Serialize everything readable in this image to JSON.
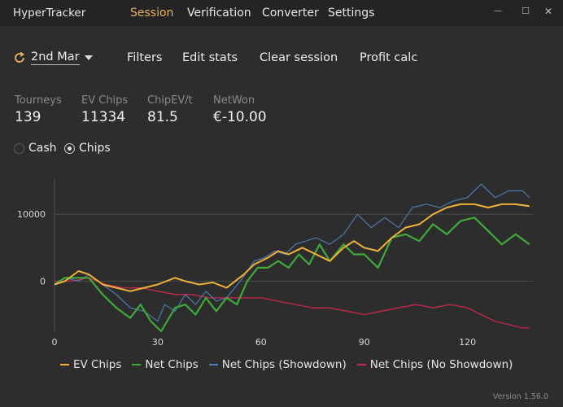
{
  "app": {
    "title": "HyperTracker",
    "version": "Version 1.56.0"
  },
  "menu": [
    {
      "label": "Session",
      "active": true
    },
    {
      "label": "Verification",
      "active": false
    },
    {
      "label": "Converter",
      "active": false
    },
    {
      "label": "Settings",
      "active": false
    }
  ],
  "window_controls": {
    "minimize": "—",
    "maximize": "☐",
    "close": "✕"
  },
  "toolbar": {
    "date": "2nd Mar",
    "filters": "Filters",
    "edit_stats": "Edit stats",
    "clear_session": "Clear session",
    "profit_calc": "Profit calc"
  },
  "stats": [
    {
      "label": "Tourneys",
      "value": "139"
    },
    {
      "label": "EV Chips",
      "value": "11334"
    },
    {
      "label": "ChipEV/t",
      "value": "81.5"
    },
    {
      "label": "NetWon",
      "value": "€-10.00"
    }
  ],
  "mode": {
    "cash_label": "Cash",
    "chips_label": "Chips",
    "selected": "Chips"
  },
  "chart_data": {
    "type": "line",
    "xlim": [
      0,
      139
    ],
    "ylim": [
      -7500,
      15500
    ],
    "x_ticks": [
      "0",
      "30",
      "60",
      "90",
      "120"
    ],
    "y_ticks": [
      "0",
      "10000"
    ],
    "grid": true,
    "legend": "bottom",
    "series": [
      {
        "name": "EV Chips",
        "color": "#f0b13b",
        "points": [
          [
            0,
            -500
          ],
          [
            3,
            0
          ],
          [
            7,
            1500
          ],
          [
            10,
            1000
          ],
          [
            14,
            -500
          ],
          [
            18,
            -1000
          ],
          [
            22,
            -1500
          ],
          [
            26,
            -1000
          ],
          [
            30,
            -500
          ],
          [
            35,
            500
          ],
          [
            38,
            0
          ],
          [
            42,
            -500
          ],
          [
            46,
            -200
          ],
          [
            50,
            -1000
          ],
          [
            55,
            1000
          ],
          [
            58,
            2500
          ],
          [
            62,
            3500
          ],
          [
            65,
            4500
          ],
          [
            68,
            4000
          ],
          [
            72,
            5000
          ],
          [
            76,
            4000
          ],
          [
            80,
            3000
          ],
          [
            84,
            5000
          ],
          [
            87,
            6000
          ],
          [
            90,
            5000
          ],
          [
            94,
            4500
          ],
          [
            98,
            6500
          ],
          [
            102,
            8000
          ],
          [
            106,
            8500
          ],
          [
            110,
            10000
          ],
          [
            114,
            11000
          ],
          [
            118,
            11500
          ],
          [
            122,
            11500
          ],
          [
            126,
            11000
          ],
          [
            130,
            11500
          ],
          [
            134,
            11500
          ],
          [
            138,
            11200
          ]
        ]
      },
      {
        "name": "Net Chips",
        "color": "#3faa3a",
        "points": [
          [
            0,
            -500
          ],
          [
            3,
            500
          ],
          [
            7,
            500
          ],
          [
            10,
            500
          ],
          [
            14,
            -2000
          ],
          [
            18,
            -4000
          ],
          [
            22,
            -5500
          ],
          [
            25,
            -3500
          ],
          [
            28,
            -6000
          ],
          [
            31,
            -7500
          ],
          [
            35,
            -4000
          ],
          [
            38,
            -3500
          ],
          [
            41,
            -5000
          ],
          [
            44,
            -2500
          ],
          [
            47,
            -4500
          ],
          [
            50,
            -2500
          ],
          [
            53,
            -3500
          ],
          [
            56,
            0
          ],
          [
            59,
            2000
          ],
          [
            62,
            2000
          ],
          [
            65,
            3000
          ],
          [
            68,
            2000
          ],
          [
            71,
            4000
          ],
          [
            74,
            2500
          ],
          [
            77,
            5500
          ],
          [
            80,
            3000
          ],
          [
            84,
            5500
          ],
          [
            87,
            4000
          ],
          [
            90,
            4000
          ],
          [
            94,
            2000
          ],
          [
            98,
            6500
          ],
          [
            102,
            7000
          ],
          [
            106,
            6000
          ],
          [
            110,
            8500
          ],
          [
            114,
            7000
          ],
          [
            118,
            9000
          ],
          [
            122,
            9500
          ],
          [
            126,
            7500
          ],
          [
            130,
            5500
          ],
          [
            134,
            7000
          ],
          [
            138,
            5500
          ]
        ]
      },
      {
        "name": "Net Chips (Showdown)",
        "color": "#4f7fb6",
        "points": [
          [
            0,
            -500
          ],
          [
            3,
            500
          ],
          [
            7,
            0
          ],
          [
            10,
            1000
          ],
          [
            14,
            -500
          ],
          [
            18,
            -2000
          ],
          [
            22,
            -4000
          ],
          [
            26,
            -4500
          ],
          [
            30,
            -6000
          ],
          [
            32,
            -3500
          ],
          [
            35,
            -4500
          ],
          [
            38,
            -2000
          ],
          [
            41,
            -3500
          ],
          [
            44,
            -1500
          ],
          [
            47,
            -3000
          ],
          [
            50,
            -2500
          ],
          [
            54,
            0
          ],
          [
            58,
            3000
          ],
          [
            61,
            3500
          ],
          [
            64,
            4500
          ],
          [
            67,
            4000
          ],
          [
            70,
            5500
          ],
          [
            73,
            6000
          ],
          [
            76,
            6500
          ],
          [
            80,
            5500
          ],
          [
            84,
            7000
          ],
          [
            88,
            10000
          ],
          [
            92,
            8000
          ],
          [
            96,
            9500
          ],
          [
            100,
            8000
          ],
          [
            104,
            11000
          ],
          [
            108,
            11500
          ],
          [
            112,
            11000
          ],
          [
            116,
            12000
          ],
          [
            120,
            12500
          ],
          [
            124,
            14500
          ],
          [
            128,
            12500
          ],
          [
            132,
            13500
          ],
          [
            136,
            13500
          ],
          [
            138,
            12500
          ]
        ]
      },
      {
        "name": "Net Chips (No Showdown)",
        "color": "#c8284a",
        "points": [
          [
            0,
            0
          ],
          [
            5,
            0
          ],
          [
            10,
            500
          ],
          [
            15,
            -500
          ],
          [
            20,
            -1000
          ],
          [
            25,
            -1000
          ],
          [
            30,
            -1500
          ],
          [
            35,
            -2000
          ],
          [
            40,
            -2000
          ],
          [
            45,
            -2500
          ],
          [
            50,
            -2500
          ],
          [
            55,
            -2500
          ],
          [
            60,
            -2500
          ],
          [
            65,
            -3000
          ],
          [
            70,
            -3500
          ],
          [
            75,
            -4000
          ],
          [
            80,
            -4000
          ],
          [
            85,
            -4500
          ],
          [
            90,
            -5000
          ],
          [
            95,
            -4500
          ],
          [
            100,
            -4000
          ],
          [
            105,
            -3500
          ],
          [
            110,
            -4000
          ],
          [
            115,
            -3500
          ],
          [
            120,
            -4000
          ],
          [
            124,
            -5000
          ],
          [
            128,
            -6000
          ],
          [
            132,
            -6500
          ],
          [
            136,
            -7000
          ],
          [
            138,
            -7000
          ]
        ]
      }
    ]
  }
}
